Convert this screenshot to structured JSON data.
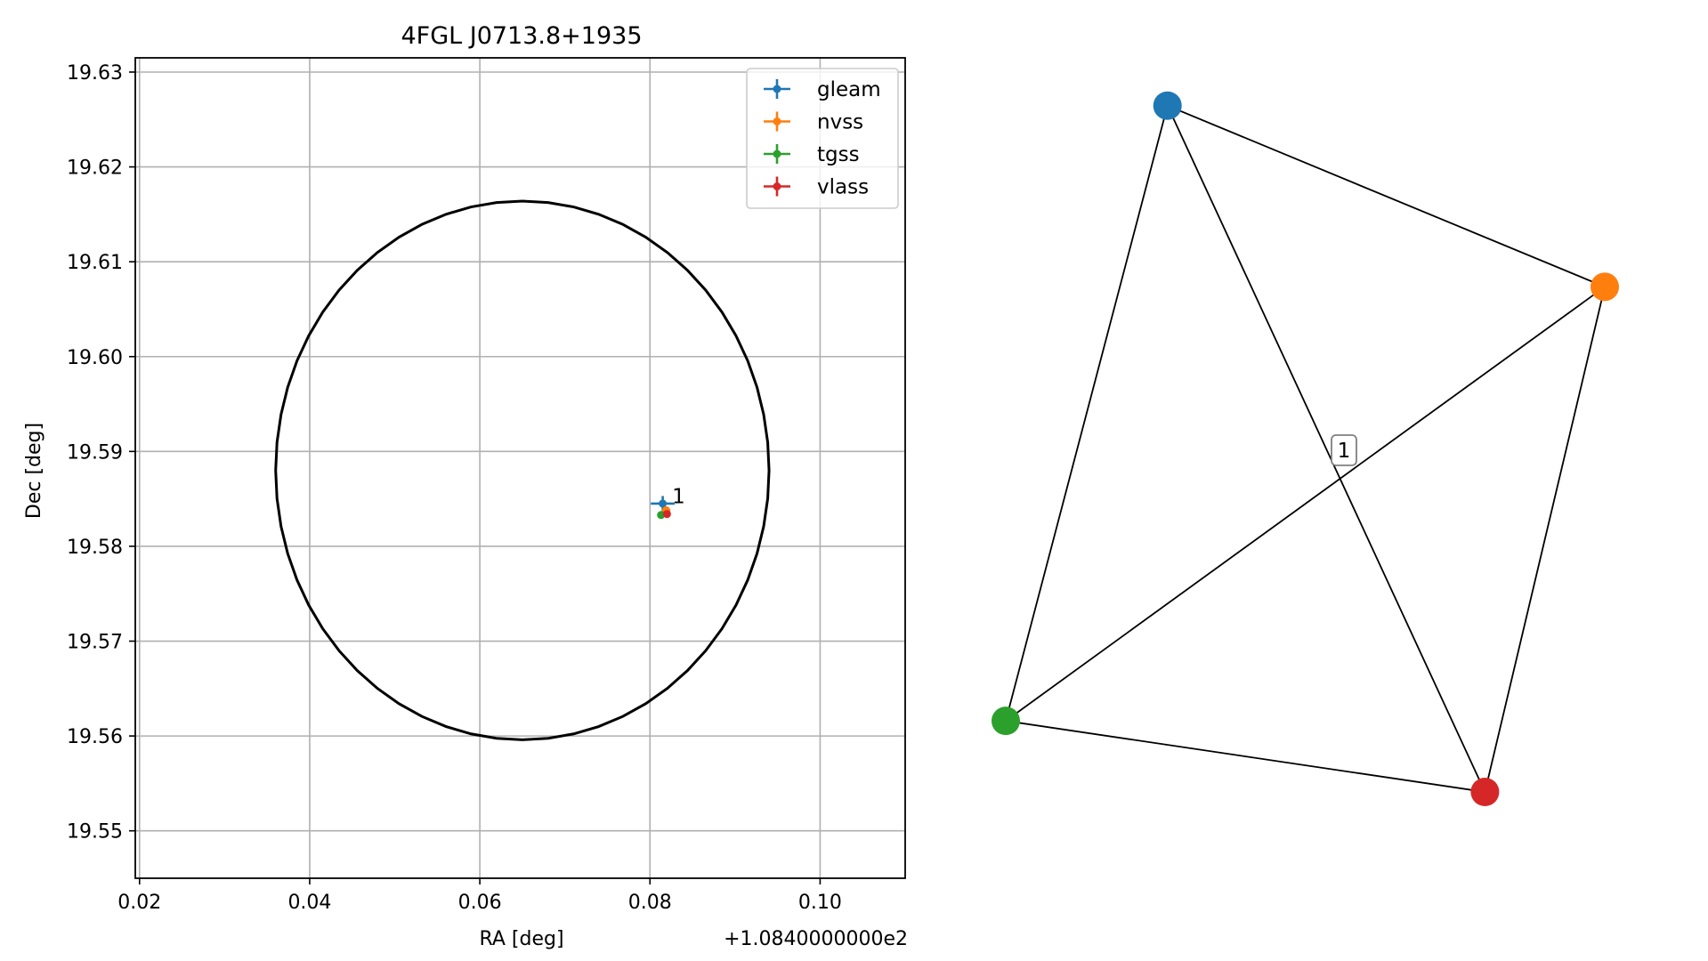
{
  "chart_data": [
    {
      "type": "scatter",
      "title": "4FGL J0713.8+1935",
      "xlabel": "RA [deg]",
      "ylabel": "Dec [deg]",
      "x_offset_label": "+1.0840000000e2",
      "xlim": [
        0.0195,
        0.11
      ],
      "ylim": [
        19.545,
        19.6315
      ],
      "xticks": [
        0.02,
        0.04,
        0.06,
        0.08,
        0.1
      ],
      "xtick_labels": [
        "0.02",
        "0.04",
        "0.06",
        "0.08",
        "0.10"
      ],
      "yticks": [
        19.55,
        19.56,
        19.57,
        19.58,
        19.59,
        19.6,
        19.61,
        19.62,
        19.63
      ],
      "ytick_labels": [
        "19.55",
        "19.56",
        "19.57",
        "19.58",
        "19.59",
        "19.60",
        "19.61",
        "19.62",
        "19.63"
      ],
      "grid": true,
      "legend_position": "top-right",
      "series": [
        {
          "name": "gleam",
          "color": "#1f77b4",
          "x": [
            0.0815
          ],
          "y": [
            19.5845
          ],
          "xerr": 0.0014,
          "yerr": 0.0008
        },
        {
          "name": "nvss",
          "color": "#ff7f0e",
          "x": [
            0.0819
          ],
          "y": [
            19.5838
          ],
          "xerr": 0.0005,
          "yerr": 0.0004
        },
        {
          "name": "tgss",
          "color": "#2ca02c",
          "x": [
            0.0813
          ],
          "y": [
            19.5833
          ],
          "xerr": 0.0004,
          "yerr": 0.0004
        },
        {
          "name": "vlass",
          "color": "#d62728",
          "x": [
            0.082
          ],
          "y": [
            19.5834
          ],
          "xerr": 0.0002,
          "yerr": 0.0002
        }
      ],
      "circle": {
        "center": [
          0.065,
          19.588
        ],
        "radius_x": 0.029,
        "radius_y": 0.0284
      },
      "annotations": [
        {
          "text": "1",
          "x": 0.0826,
          "y": 19.5853
        }
      ]
    },
    {
      "type": "graph",
      "nodes": [
        {
          "id": "gleam",
          "color": "#1f77b4",
          "pos": [
            0.27,
            0.985
          ]
        },
        {
          "id": "nvss",
          "color": "#ff7f0e",
          "pos": [
            1.0,
            0.725
          ]
        },
        {
          "id": "tgss",
          "color": "#2ca02c",
          "pos": [
            0.0,
            0.102
          ]
        },
        {
          "id": "vlass",
          "color": "#d62728",
          "pos": [
            0.8,
            0.0
          ]
        }
      ],
      "edges": [
        [
          "gleam",
          "nvss"
        ],
        [
          "gleam",
          "tgss"
        ],
        [
          "gleam",
          "vlass"
        ],
        [
          "nvss",
          "tgss"
        ],
        [
          "nvss",
          "vlass"
        ],
        [
          "tgss",
          "vlass"
        ]
      ],
      "center_label": "1"
    }
  ]
}
